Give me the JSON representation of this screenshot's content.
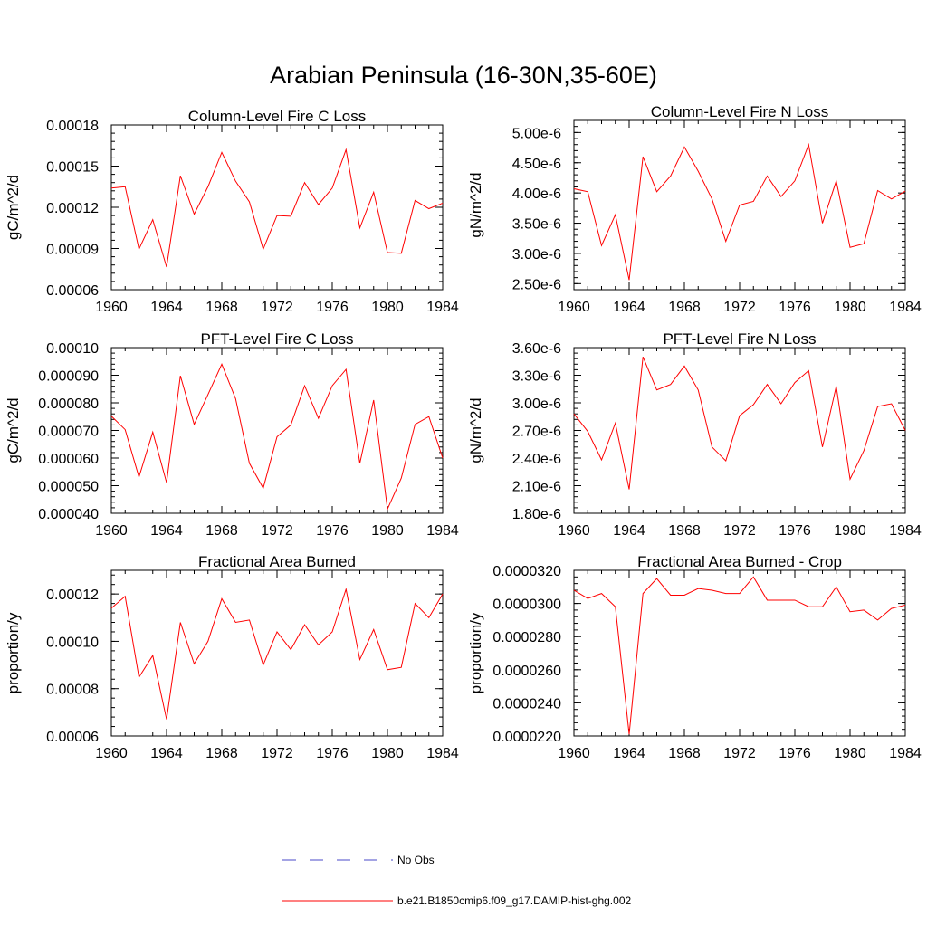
{
  "title": "Arabian Peninsula (16-30N,35-60E)",
  "colors": {
    "model_line": "#ff0000",
    "obs_line": "#4a4ac8",
    "frame": "#000000"
  },
  "legend": [
    {
      "label": "No Obs",
      "style": "dashed",
      "color": "#4a4ac8"
    },
    {
      "label": "b.e21.B1850cmip6.f09_g17.DAMIP-hist-ghg.002",
      "style": "solid",
      "color": "#ff0000"
    }
  ],
  "chart_data": [
    {
      "type": "line",
      "title": "Column-Level Fire C Loss",
      "ylabel": "gC/m^2/d",
      "xlabel": "",
      "xlim": [
        1960,
        1984
      ],
      "ylim": [
        6e-05,
        0.00018
      ],
      "xticks": [
        "1960",
        "1964",
        "1968",
        "1972",
        "1976",
        "1980",
        "1984"
      ],
      "yticks": [
        {
          "value": 6e-05,
          "label": "0.00006"
        },
        {
          "value": 9e-05,
          "label": "0.00009"
        },
        {
          "value": 0.00012,
          "label": "0.00012"
        },
        {
          "value": 0.00015,
          "label": "0.00015"
        },
        {
          "value": 0.00018,
          "label": "0.00018"
        }
      ],
      "x": [
        1960,
        1961,
        1962,
        1963,
        1964,
        1965,
        1966,
        1967,
        1968,
        1969,
        1970,
        1971,
        1972,
        1973,
        1974,
        1975,
        1976,
        1977,
        1978,
        1979,
        1980,
        1981,
        1982,
        1983,
        1984
      ],
      "series": [
        {
          "name": "b.e21.B1850cmip6.f09_g17.DAMIP-hist-ghg.002",
          "values": [
            0.000134,
            0.000135,
            8.95e-05,
            0.000111,
            7.65e-05,
            0.000143,
            0.000115,
            0.000135,
            0.00016,
            0.000139,
            0.000124,
            8.95e-05,
            0.000114,
            0.0001135,
            0.000138,
            0.000122,
            0.000134,
            0.000162,
            0.000105,
            0.000131,
            8.7e-05,
            8.65e-05,
            0.000125,
            0.000119,
            0.000123
          ]
        }
      ]
    },
    {
      "type": "line",
      "title": "Column-Level Fire N Loss",
      "ylabel": "gN/m^2/d",
      "xlabel": "",
      "xlim": [
        1960,
        1984
      ],
      "ylim": [
        2.4e-06,
        5.2e-06
      ],
      "xticks": [
        "1960",
        "1964",
        "1968",
        "1972",
        "1976",
        "1980",
        "1984"
      ],
      "yticks": [
        {
          "value": 2.5e-06,
          "label": "2.50e-6"
        },
        {
          "value": 3e-06,
          "label": "3.00e-6"
        },
        {
          "value": 3.5e-06,
          "label": "3.50e-6"
        },
        {
          "value": 4e-06,
          "label": "4.00e-6"
        },
        {
          "value": 4.5e-06,
          "label": "4.50e-6"
        },
        {
          "value": 5e-06,
          "label": "5.00e-6"
        }
      ],
      "x": [
        1960,
        1961,
        1962,
        1963,
        1964,
        1965,
        1966,
        1967,
        1968,
        1969,
        1970,
        1971,
        1972,
        1973,
        1974,
        1975,
        1976,
        1977,
        1978,
        1979,
        1980,
        1981,
        1982,
        1983,
        1984
      ],
      "series": [
        {
          "name": "b.e21.B1850cmip6.f09_g17.DAMIP-hist-ghg.002",
          "values": [
            4.07e-06,
            4.02e-06,
            3.13e-06,
            3.64e-06,
            2.56e-06,
            4.6e-06,
            4.02e-06,
            4.28e-06,
            4.76e-06,
            4.36e-06,
            3.9e-06,
            3.2e-06,
            3.8e-06,
            3.86e-06,
            4.28e-06,
            3.94e-06,
            4.2e-06,
            4.8e-06,
            3.5e-06,
            4.2e-06,
            3.1e-06,
            3.16e-06,
            4.04e-06,
            3.9e-06,
            4.03e-06
          ]
        }
      ]
    },
    {
      "type": "line",
      "title": "PFT-Level Fire C Loss",
      "ylabel": "gC/m^2/d",
      "xlabel": "",
      "xlim": [
        1960,
        1984
      ],
      "ylim": [
        4e-05,
        0.0001
      ],
      "xticks": [
        "1960",
        "1964",
        "1968",
        "1972",
        "1976",
        "1980",
        "1984"
      ],
      "yticks": [
        {
          "value": 4e-05,
          "label": "0.000040"
        },
        {
          "value": 5e-05,
          "label": "0.000050"
        },
        {
          "value": 6e-05,
          "label": "0.000060"
        },
        {
          "value": 7e-05,
          "label": "0.000070"
        },
        {
          "value": 8e-05,
          "label": "0.000080"
        },
        {
          "value": 9e-05,
          "label": "0.000090"
        },
        {
          "value": 0.0001,
          "label": "0.00010"
        }
      ],
      "x": [
        1960,
        1961,
        1962,
        1963,
        1964,
        1965,
        1966,
        1967,
        1968,
        1969,
        1970,
        1971,
        1972,
        1973,
        1974,
        1975,
        1976,
        1977,
        1978,
        1979,
        1980,
        1981,
        1982,
        1983,
        1984
      ],
      "series": [
        {
          "name": "b.e21.B1850cmip6.f09_g17.DAMIP-hist-ghg.002",
          "values": [
            7.52e-05,
            7.03e-05,
            5.31e-05,
            6.94e-05,
            5.11e-05,
            8.98e-05,
            7.22e-05,
            8.3e-05,
            9.4e-05,
            8.15e-05,
            5.81e-05,
            4.91e-05,
            6.77e-05,
            7.2e-05,
            8.62e-05,
            7.44e-05,
            8.62e-05,
            9.21e-05,
            5.81e-05,
            8.1e-05,
            4.15e-05,
            5.27e-05,
            7.22e-05,
            7.5e-05,
            6e-05
          ]
        }
      ]
    },
    {
      "type": "line",
      "title": "PFT-Level Fire N Loss",
      "ylabel": "gN/m^2/d",
      "xlabel": "",
      "xlim": [
        1960,
        1984
      ],
      "ylim": [
        1.8e-06,
        3.6e-06
      ],
      "xticks": [
        "1960",
        "1964",
        "1968",
        "1972",
        "1976",
        "1980",
        "1984"
      ],
      "yticks": [
        {
          "value": 1.8e-06,
          "label": "1.80e-6"
        },
        {
          "value": 2.1e-06,
          "label": "2.10e-6"
        },
        {
          "value": 2.4e-06,
          "label": "2.40e-6"
        },
        {
          "value": 2.7e-06,
          "label": "2.70e-6"
        },
        {
          "value": 3e-06,
          "label": "3.00e-6"
        },
        {
          "value": 3.3e-06,
          "label": "3.30e-6"
        },
        {
          "value": 3.6e-06,
          "label": "3.60e-6"
        }
      ],
      "x": [
        1960,
        1961,
        1962,
        1963,
        1964,
        1965,
        1966,
        1967,
        1968,
        1969,
        1970,
        1971,
        1972,
        1973,
        1974,
        1975,
        1976,
        1977,
        1978,
        1979,
        1980,
        1981,
        1982,
        1983,
        1984
      ],
      "series": [
        {
          "name": "b.e21.B1850cmip6.f09_g17.DAMIP-hist-ghg.002",
          "values": [
            2.88e-06,
            2.69e-06,
            2.38e-06,
            2.78e-06,
            2.06e-06,
            3.5e-06,
            3.14e-06,
            3.2e-06,
            3.4e-06,
            3.14e-06,
            2.52e-06,
            2.37e-06,
            2.86e-06,
            2.98e-06,
            3.2e-06,
            2.99e-06,
            3.22e-06,
            3.35e-06,
            2.52e-06,
            3.18e-06,
            2.17e-06,
            2.48e-06,
            2.96e-06,
            2.99e-06,
            2.7e-06
          ]
        }
      ]
    },
    {
      "type": "line",
      "title": "Fractional Area Burned",
      "ylabel": "proportion/y",
      "xlabel": "",
      "xlim": [
        1960,
        1984
      ],
      "ylim": [
        6e-05,
        0.00013
      ],
      "xticks": [
        "1960",
        "1964",
        "1968",
        "1972",
        "1976",
        "1980",
        "1984"
      ],
      "yticks": [
        {
          "value": 6e-05,
          "label": "0.00006"
        },
        {
          "value": 8e-05,
          "label": "0.00008"
        },
        {
          "value": 0.0001,
          "label": "0.00010"
        },
        {
          "value": 0.00012,
          "label": "0.00012"
        }
      ],
      "x": [
        1960,
        1961,
        1962,
        1963,
        1964,
        1965,
        1966,
        1967,
        1968,
        1969,
        1970,
        1971,
        1972,
        1973,
        1974,
        1975,
        1976,
        1977,
        1978,
        1979,
        1980,
        1981,
        1982,
        1983,
        1984
      ],
      "series": [
        {
          "name": "b.e21.B1850cmip6.f09_g17.DAMIP-hist-ghg.002",
          "values": [
            0.000114,
            0.000119,
            8.48e-05,
            9.4e-05,
            6.7e-05,
            0.000108,
            9.05e-05,
            0.0001,
            0.000118,
            0.000108,
            0.000109,
            9e-05,
            0.000104,
            9.65e-05,
            0.000107,
            9.85e-05,
            0.000104,
            0.000122,
            9.23e-05,
            0.000105,
            8.8e-05,
            8.9e-05,
            0.000116,
            0.00011,
            0.00012
          ]
        }
      ]
    },
    {
      "type": "line",
      "title": "Fractional Area Burned - Crop",
      "ylabel": "proportion/y",
      "xlabel": "",
      "xlim": [
        1960,
        1984
      ],
      "ylim": [
        2.2e-05,
        3.2e-05
      ],
      "xticks": [
        "1960",
        "1964",
        "1968",
        "1972",
        "1976",
        "1980",
        "1984"
      ],
      "yticks": [
        {
          "value": 2.2e-05,
          "label": "0.0000220"
        },
        {
          "value": 2.4e-05,
          "label": "0.0000240"
        },
        {
          "value": 2.6e-05,
          "label": "0.0000260"
        },
        {
          "value": 2.8e-05,
          "label": "0.0000280"
        },
        {
          "value": 3e-05,
          "label": "0.0000300"
        },
        {
          "value": 3.2e-05,
          "label": "0.0000320"
        }
      ],
      "x": [
        1960,
        1961,
        1962,
        1963,
        1964,
        1965,
        1966,
        1967,
        1968,
        1969,
        1970,
        1971,
        1972,
        1973,
        1974,
        1975,
        1976,
        1977,
        1978,
        1979,
        1980,
        1981,
        1982,
        1983,
        1984
      ],
      "series": [
        {
          "name": "b.e21.B1850cmip6.f09_g17.DAMIP-hist-ghg.002",
          "values": [
            3.08e-05,
            3.03e-05,
            3.06e-05,
            2.98e-05,
            2.21e-05,
            3.06e-05,
            3.15e-05,
            3.05e-05,
            3.05e-05,
            3.09e-05,
            3.08e-05,
            3.06e-05,
            3.06e-05,
            3.16e-05,
            3.02e-05,
            3.02e-05,
            3.02e-05,
            2.98e-05,
            2.98e-05,
            3.1e-05,
            2.95e-05,
            2.96e-05,
            2.9e-05,
            2.97e-05,
            2.99e-05
          ]
        }
      ]
    }
  ]
}
